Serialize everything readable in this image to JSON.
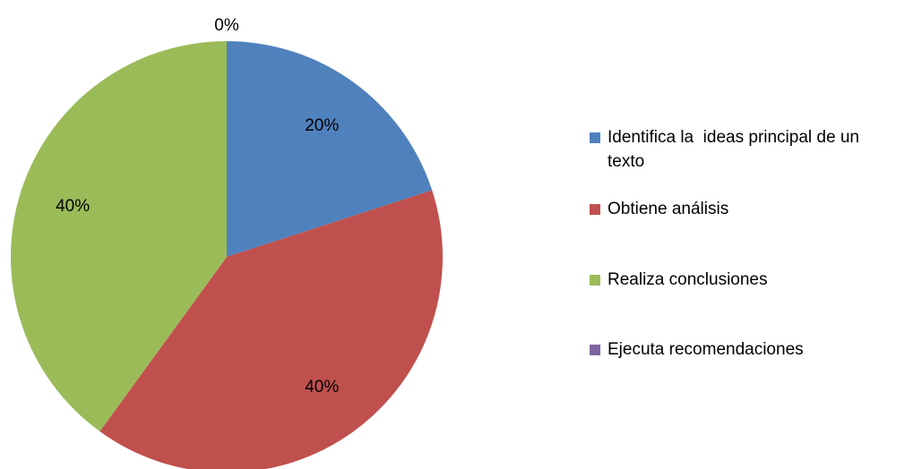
{
  "chart_data": {
    "type": "pie",
    "categories": [
      "Identifica la  ideas principal de un texto",
      "Obtiene análisis",
      "Realiza conclusiones",
      "Ejecuta recomendaciones"
    ],
    "values": [
      20,
      40,
      40,
      0
    ],
    "value_labels": [
      "20%",
      "40%",
      "40%",
      "0%"
    ],
    "colors": [
      "#4f81bd",
      "#c0504d",
      "#9bbb59",
      "#8064a2"
    ],
    "legend": "right"
  }
}
